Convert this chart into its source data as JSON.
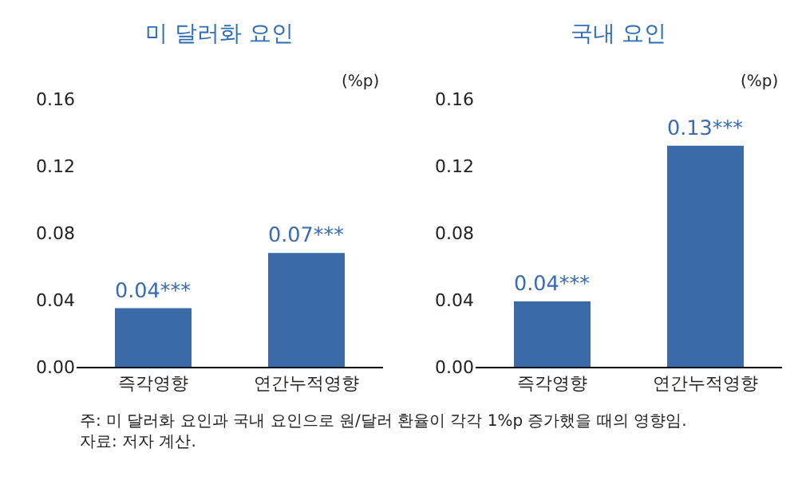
{
  "chart_data": [
    {
      "type": "bar",
      "title": "미 달러화 요인",
      "ylabel": "(%p)",
      "categories": [
        "즉각영향",
        "연간누적영향"
      ],
      "values": [
        0.035,
        0.068
      ],
      "value_labels": [
        "0.04***",
        "0.07***"
      ],
      "color": "#3a6aa8",
      "ylim": [
        0,
        0.16
      ],
      "yticks": [
        {
          "value": 0,
          "label": "0.00"
        },
        0.04,
        0.08,
        0.12,
        0.16
      ],
      "annotations": [
        "주: 미 달러화 요인과 국내 요인으로 원/달러 환율이 각각 1%p 증가했을 때의 영향임.",
        "자료: 저자 계산."
      ]
    },
    {
      "type": "bar",
      "title": "국내 요인",
      "ylabel": "(%p)",
      "categories": [
        "즉각영향",
        "연간누적영향"
      ],
      "values": [
        0.039,
        0.132
      ],
      "value_labels": [
        "0.04***",
        "0.13***"
      ],
      "color": "#3a6aa8",
      "ylim": [
        0,
        0.16
      ],
      "yticks": [
        {
          "value": 0,
          "label": "0.00"
        },
        0.04,
        0.08,
        0.12,
        0.16
      ]
    }
  ]
}
